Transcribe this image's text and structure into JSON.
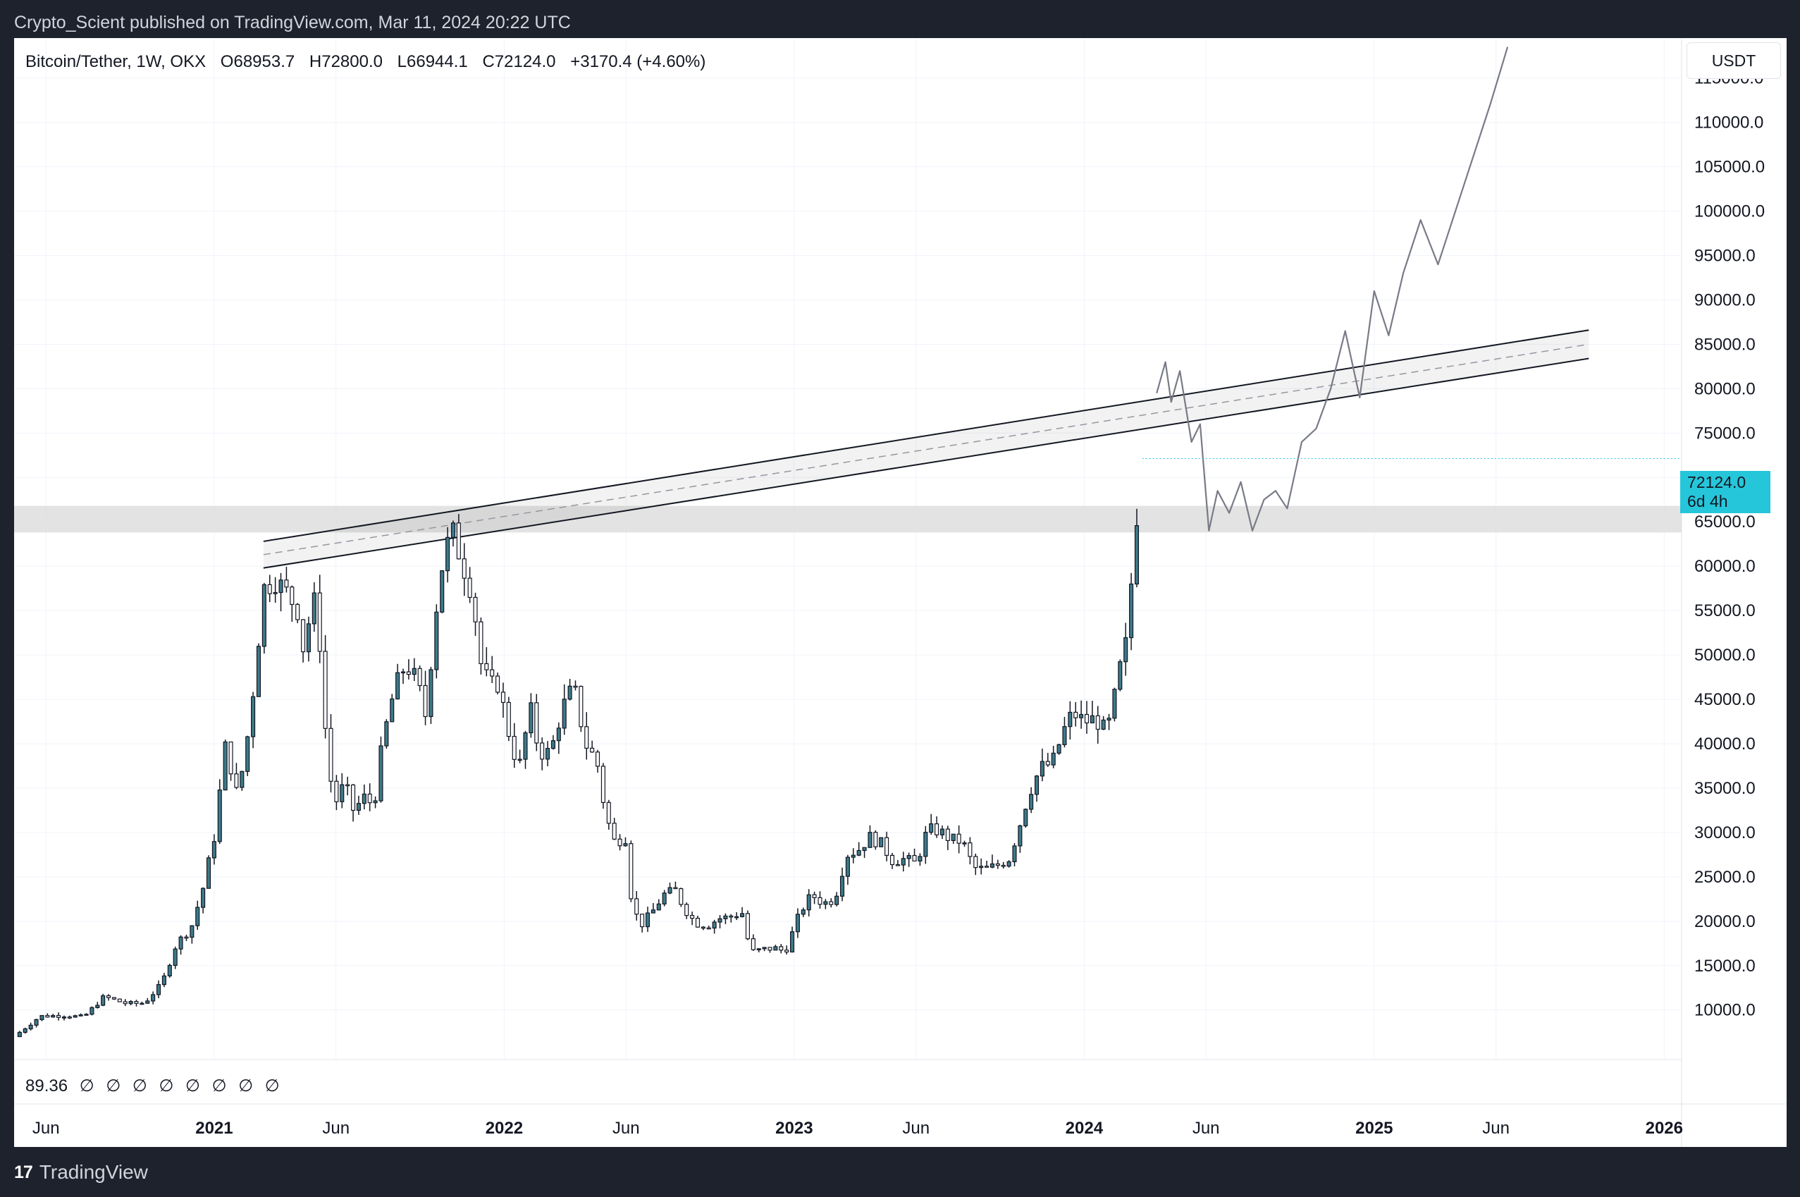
{
  "header": {
    "published": "Crypto_Scient published on TradingView.com, Mar 11, 2024 20:22 UTC"
  },
  "legend": {
    "symbol": "Bitcoin/Tether, 1W, OKX",
    "open": "O68953.7",
    "high": "H72800.0",
    "low": "L66944.1",
    "close": "C72124.0",
    "change": "+3170.4 (+4.60%)"
  },
  "currency_button": "USDT",
  "last_price": {
    "value": "72124.0",
    "countdown": "6d 4h"
  },
  "indicator": {
    "value": "89.36",
    "symbols": [
      "∅",
      "∅",
      "∅",
      "∅",
      "∅",
      "∅",
      "∅",
      "∅"
    ]
  },
  "footer": {
    "logo": "17",
    "brand": "TradingView"
  },
  "colors": {
    "bg_dark": "#1e222d",
    "candle_fill": "#3d7a8a",
    "accent": "#26c6da",
    "band": "#dedede"
  },
  "chart_data": {
    "type": "candlestick",
    "timeframe": "1W",
    "x_ticks": [
      "Jun",
      "2021",
      "Jun",
      "2022",
      "Jun",
      "2023",
      "Jun",
      "2024",
      "Jun",
      "2025",
      "Jun",
      "2026"
    ],
    "x_tick_t": [
      2020.42,
      2021.0,
      2021.42,
      2022.0,
      2022.42,
      2023.0,
      2023.42,
      2024.0,
      2024.42,
      2025.0,
      2025.42,
      2026.0
    ],
    "y_ticks": [
      10000,
      15000,
      20000,
      25000,
      30000,
      35000,
      40000,
      45000,
      50000,
      55000,
      60000,
      65000,
      70000,
      75000,
      80000,
      85000,
      90000,
      95000,
      100000,
      105000,
      110000,
      115000
    ],
    "y_range": [
      4500,
      119500
    ],
    "x_range": [
      2020.31,
      2026.06
    ],
    "close_path": [
      [
        2020.31,
        7000
      ],
      [
        2020.4,
        9300
      ],
      [
        2020.48,
        9400
      ],
      [
        2020.55,
        9200
      ],
      [
        2020.62,
        11500
      ],
      [
        2020.7,
        10700
      ],
      [
        2020.76,
        10800
      ],
      [
        2020.82,
        13000
      ],
      [
        2020.87,
        17500
      ],
      [
        2020.92,
        19200
      ],
      [
        2020.96,
        23500
      ],
      [
        2021.0,
        29500
      ],
      [
        2021.04,
        40000
      ],
      [
        2021.08,
        34000
      ],
      [
        2021.11,
        39500
      ],
      [
        2021.14,
        47500
      ],
      [
        2021.17,
        57500
      ],
      [
        2021.21,
        58500
      ],
      [
        2021.25,
        57000
      ],
      [
        2021.29,
        55000
      ],
      [
        2021.31,
        50000
      ],
      [
        2021.34,
        57000
      ],
      [
        2021.37,
        50000
      ],
      [
        2021.39,
        37500
      ],
      [
        2021.42,
        33500
      ],
      [
        2021.45,
        35500
      ],
      [
        2021.48,
        32500
      ],
      [
        2021.52,
        34000
      ],
      [
        2021.55,
        33000
      ],
      [
        2021.58,
        40000
      ],
      [
        2021.62,
        46000
      ],
      [
        2021.66,
        49000
      ],
      [
        2021.7,
        47000
      ],
      [
        2021.73,
        43000
      ],
      [
        2021.76,
        54000
      ],
      [
        2021.79,
        61000
      ],
      [
        2021.82,
        64000
      ],
      [
        2021.86,
        60000
      ],
      [
        2021.89,
        57000
      ],
      [
        2021.92,
        49000
      ],
      [
        2021.95,
        46500
      ],
      [
        2021.98,
        46800
      ],
      [
        2022.01,
        42000
      ],
      [
        2022.05,
        37000
      ],
      [
        2022.09,
        44000
      ],
      [
        2022.12,
        39000
      ],
      [
        2022.16,
        39000
      ],
      [
        2022.2,
        44000
      ],
      [
        2022.24,
        46500
      ],
      [
        2022.28,
        40000
      ],
      [
        2022.32,
        38000
      ],
      [
        2022.35,
        32000
      ],
      [
        2022.38,
        29000
      ],
      [
        2022.42,
        29500
      ],
      [
        2022.44,
        22000
      ],
      [
        2022.47,
        19500
      ],
      [
        2022.51,
        21000
      ],
      [
        2022.55,
        23000
      ],
      [
        2022.59,
        23500
      ],
      [
        2022.62,
        21500
      ],
      [
        2022.66,
        19800
      ],
      [
        2022.7,
        19500
      ],
      [
        2022.74,
        20300
      ],
      [
        2022.78,
        20500
      ],
      [
        2022.82,
        21000
      ],
      [
        2022.85,
        16500
      ],
      [
        2022.89,
        16800
      ],
      [
        2022.93,
        17000
      ],
      [
        2022.97,
        16600
      ],
      [
        2023.02,
        21000
      ],
      [
        2023.06,
        23000
      ],
      [
        2023.1,
        22000
      ],
      [
        2023.14,
        22500
      ],
      [
        2023.18,
        27500
      ],
      [
        2023.22,
        28000
      ],
      [
        2023.26,
        29500
      ],
      [
        2023.3,
        28700
      ],
      [
        2023.34,
        26800
      ],
      [
        2023.38,
        27000
      ],
      [
        2023.42,
        26500
      ],
      [
        2023.46,
        30300
      ],
      [
        2023.5,
        30200
      ],
      [
        2023.54,
        29200
      ],
      [
        2023.58,
        29000
      ],
      [
        2023.62,
        26000
      ],
      [
        2023.66,
        25800
      ],
      [
        2023.7,
        26300
      ],
      [
        2023.74,
        27000
      ],
      [
        2023.77,
        30000
      ],
      [
        2023.81,
        34500
      ],
      [
        2023.85,
        37300
      ],
      [
        2023.89,
        37800
      ],
      [
        2023.93,
        41500
      ],
      [
        2023.96,
        43500
      ],
      [
        2024.0,
        42500
      ],
      [
        2024.04,
        42800
      ],
      [
        2024.07,
        41500
      ],
      [
        2024.09,
        42500
      ],
      [
        2024.12,
        48000
      ],
      [
        2024.15,
        52000
      ],
      [
        2024.17,
        62000
      ],
      [
        2024.19,
        68900
      ],
      [
        2024.2,
        72124
      ]
    ],
    "channel_upper": [
      [
        2021.17,
        62800
      ],
      [
        2025.74,
        86600
      ]
    ],
    "channel_lower": [
      [
        2021.17,
        59800
      ],
      [
        2025.74,
        83400
      ]
    ],
    "channel_mid": [
      [
        2021.17,
        61300
      ],
      [
        2025.74,
        85000
      ]
    ],
    "horizontal_zone": [
      63800,
      66800
    ],
    "projection": [
      [
        2024.25,
        79500
      ],
      [
        2024.28,
        83000
      ],
      [
        2024.3,
        78500
      ],
      [
        2024.33,
        82000
      ],
      [
        2024.37,
        74000
      ],
      [
        2024.4,
        76000
      ],
      [
        2024.43,
        64000
      ],
      [
        2024.46,
        68500
      ],
      [
        2024.5,
        66000
      ],
      [
        2024.54,
        69500
      ],
      [
        2024.58,
        64000
      ],
      [
        2024.62,
        67500
      ],
      [
        2024.66,
        68500
      ],
      [
        2024.7,
        66500
      ],
      [
        2024.75,
        74000
      ],
      [
        2024.8,
        75500
      ],
      [
        2024.85,
        80000
      ],
      [
        2024.9,
        86500
      ],
      [
        2024.95,
        79000
      ],
      [
        2025.0,
        91000
      ],
      [
        2025.05,
        86000
      ],
      [
        2025.1,
        93000
      ],
      [
        2025.16,
        99000
      ],
      [
        2025.22,
        94000
      ],
      [
        2025.3,
        102000
      ],
      [
        2025.4,
        112000
      ],
      [
        2025.46,
        118500
      ]
    ]
  }
}
